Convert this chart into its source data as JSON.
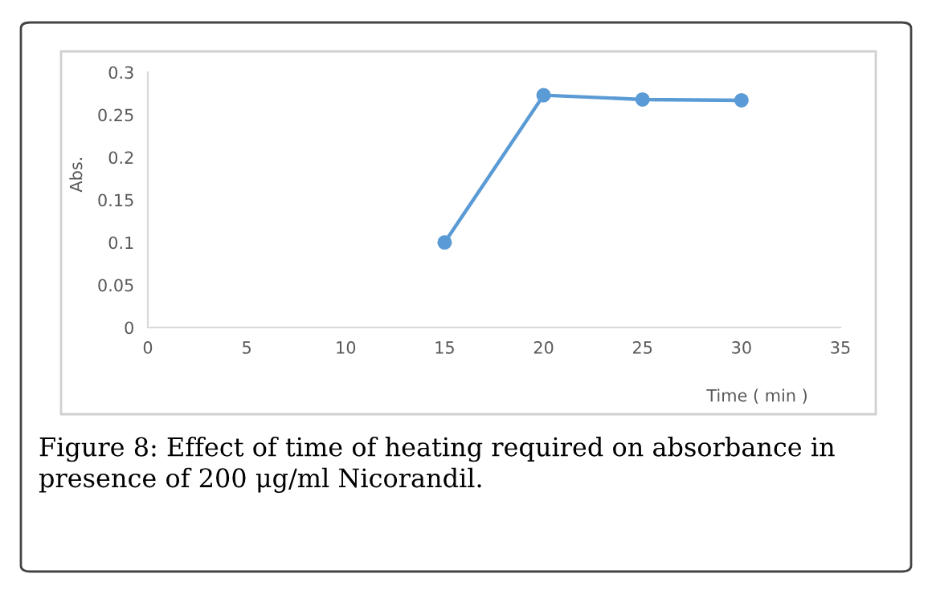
{
  "chart_data": {
    "type": "line",
    "xlabel": "Time ( min )",
    "ylabel": "Abs.",
    "x": [
      15,
      20,
      25,
      30
    ],
    "series": [
      {
        "color": "#5b9bd5",
        "values": [
          0.1,
          0.273,
          0.268,
          0.267
        ]
      }
    ],
    "xlim": [
      0,
      35
    ],
    "xticks": [
      0,
      5,
      10,
      15,
      20,
      25,
      30,
      35
    ],
    "ylim": [
      0,
      0.3
    ],
    "yticks": [
      0,
      0.05,
      0.1,
      0.15,
      0.2,
      0.25,
      0.3
    ],
    "grid": false,
    "marker": "circle",
    "line_style": "solid",
    "annotations": [
      "Figure 8: Effect of time of heating required on absorbance in presence of 200 μg/ml Nicorandil."
    ]
  }
}
